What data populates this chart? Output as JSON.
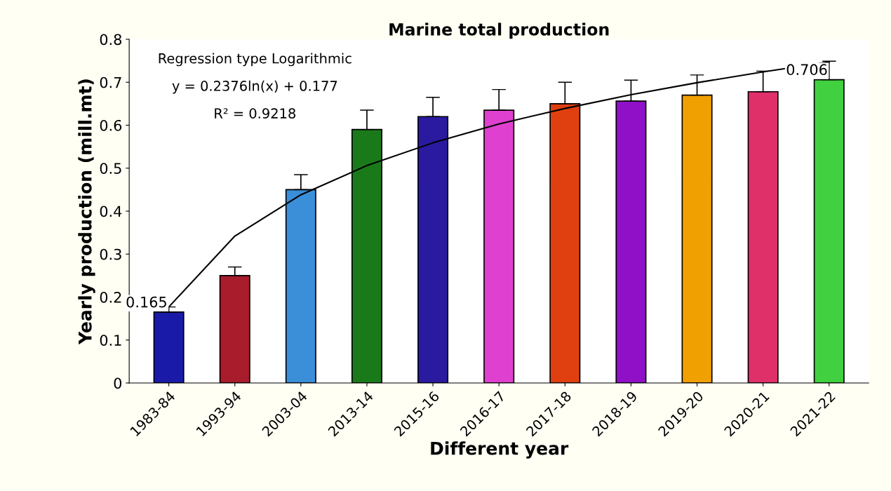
{
  "chart_data": {
    "type": "bar",
    "title": "Marine total production",
    "xlabel": "Different year",
    "ylabel": "Yearly production (mill.mt)",
    "categories": [
      "1983-84",
      "1993-94",
      "2003-04",
      "2013-14",
      "2015-16",
      "2016-17",
      "2017-18",
      "2018-19",
      "2019-20",
      "2020-21",
      "2021-22"
    ],
    "series": [
      {
        "values": [
          0.165,
          0.25,
          0.45,
          0.59,
          0.62,
          0.635,
          0.65,
          0.656,
          0.67,
          0.678,
          0.706
        ],
        "colors": [
          "#1a1aa8",
          "#a81c2c",
          "#3a8fd8",
          "#1a7a1a",
          "#2a1aa0",
          "#e040d0",
          "#e04010",
          "#9010c8",
          "#f0a000",
          "#e0306a",
          "#40d040"
        ],
        "errors": [
          0.012,
          0.02,
          0.035,
          0.045,
          0.045,
          0.048,
          0.05,
          0.049,
          0.047,
          0.048,
          0.043
        ],
        "value_labels": [
          "0.165",
          null,
          null,
          null,
          null,
          null,
          null,
          null,
          null,
          null,
          "0.706"
        ]
      },
      {
        "type": "line",
        "color": "#000000",
        "values": [
          0.177,
          0.342,
          0.438,
          0.506,
          0.559,
          0.603,
          0.639,
          0.671,
          0.699,
          0.724,
          0.747
        ]
      }
    ],
    "ylim": [
      0,
      0.8
    ],
    "yticks": [
      0,
      0.1,
      0.2,
      0.3,
      0.4,
      0.5,
      0.6,
      0.7,
      0.8
    ],
    "grid": false,
    "legend": false,
    "annotations": [
      "Regression type Logarithmic",
      "y = 0.2376ln(x) + 0.177",
      "R² = 0.9218"
    ]
  }
}
